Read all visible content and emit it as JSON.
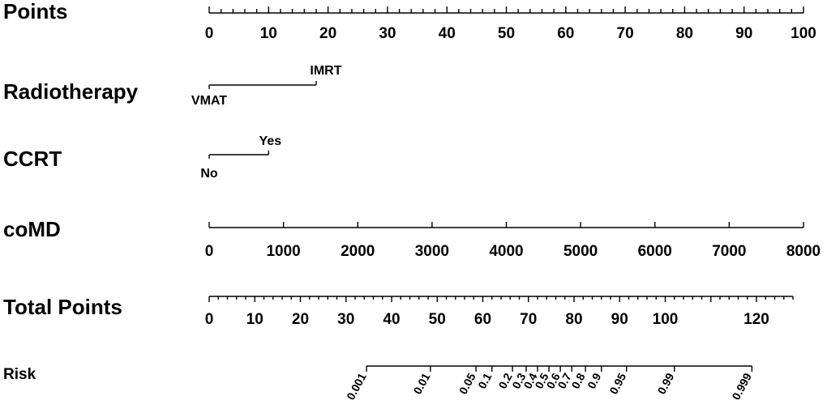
{
  "chart_data": {
    "type": "nomogram",
    "rows": [
      {
        "key": "points",
        "label": "Points",
        "ticks": [
          0,
          10,
          20,
          30,
          40,
          50,
          60,
          70,
          80,
          90,
          100
        ],
        "minor_step": 2
      },
      {
        "key": "radiotherapy",
        "label": "Radiotherapy",
        "levels": [
          {
            "name": "VMAT",
            "points": 0
          },
          {
            "name": "IMRT",
            "points": 18
          }
        ]
      },
      {
        "key": "ccrt",
        "label": "CCRT",
        "levels": [
          {
            "name": "No",
            "points": 0
          },
          {
            "name": "Yes",
            "points": 10
          }
        ]
      },
      {
        "key": "comd",
        "label": "coMD",
        "ticks": [
          0,
          1000,
          2000,
          3000,
          4000,
          5000,
          6000,
          7000,
          8000
        ],
        "range": [
          0,
          8000
        ],
        "points_at_max": 100
      },
      {
        "key": "total_points",
        "label": "Total Points",
        "ticks": [
          0,
          10,
          20,
          30,
          40,
          50,
          60,
          70,
          80,
          90,
          100,
          120
        ],
        "range": [
          0,
          130
        ],
        "minor_step": 2
      },
      {
        "key": "risk",
        "label": "Risk",
        "ticks": [
          "0.001",
          "0.01",
          "0.05",
          "0.1",
          "0.2",
          "0.3",
          "0.4",
          "0.5",
          "0.6",
          "0.7",
          "0.8",
          "0.9",
          "0.95",
          "0.99",
          "0.999"
        ],
        "total_points_at": [
          34.5,
          48.5,
          58.5,
          62,
          66.5,
          69.5,
          72,
          74.5,
          77,
          79.5,
          82.5,
          86,
          91.5,
          102,
          119
        ]
      }
    ]
  }
}
